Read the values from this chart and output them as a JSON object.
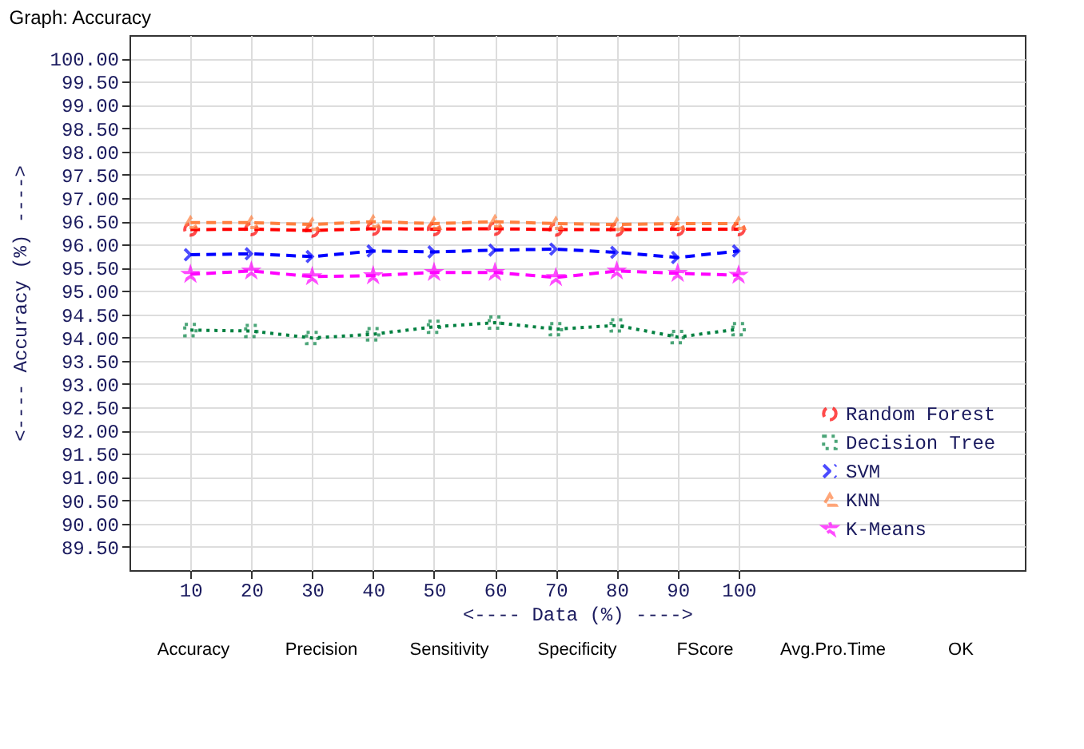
{
  "chart_data": {
    "type": "line",
    "title": "Graph: Accuracy",
    "xlabel": "<---- Data (%) ---->",
    "ylabel": "<---- Accuracy (%) ---->",
    "x": [
      10,
      20,
      30,
      40,
      50,
      60,
      70,
      80,
      90,
      100
    ],
    "series": [
      {
        "name": "Random Forest",
        "color": "#ff0000",
        "marker": "circle",
        "line_style": "dashed",
        "values": [
          96.32,
          96.33,
          96.3,
          96.34,
          96.33,
          96.34,
          96.32,
          96.32,
          96.33,
          96.33
        ]
      },
      {
        "name": "Decision Tree",
        "color": "#008040",
        "marker": "square",
        "line_style": "dotted",
        "values": [
          94.16,
          94.14,
          93.99,
          94.07,
          94.23,
          94.32,
          94.18,
          94.26,
          94.01,
          94.18
        ]
      },
      {
        "name": "SVM",
        "color": "#0000ff",
        "marker": "cross",
        "line_style": "dashed",
        "values": [
          95.78,
          95.8,
          95.74,
          95.86,
          95.84,
          95.88,
          95.9,
          95.83,
          95.72,
          95.86
        ]
      },
      {
        "name": "KNN",
        "color": "#ff8040",
        "marker": "triangle",
        "line_style": "dashed",
        "values": [
          96.47,
          96.47,
          96.43,
          96.49,
          96.45,
          96.49,
          96.45,
          96.43,
          96.45,
          96.45
        ]
      },
      {
        "name": "K-Means",
        "color": "#ff00ff",
        "marker": "star",
        "line_style": "dashed",
        "values": [
          95.36,
          95.43,
          95.31,
          95.33,
          95.4,
          95.4,
          95.29,
          95.43,
          95.38,
          95.34
        ]
      }
    ],
    "xlim": [
      0,
      147
    ],
    "xticks": [
      10,
      20,
      30,
      40,
      50,
      60,
      70,
      80,
      90,
      100
    ],
    "ylim": [
      89,
      100.5
    ],
    "yticks": [
      {
        "value": 89.5,
        "label": "89.50"
      },
      {
        "value": 90,
        "label": "90.00"
      },
      {
        "value": 90.5,
        "label": "90.50"
      },
      {
        "value": 91,
        "label": "91.00"
      },
      {
        "value": 91.5,
        "label": "91.50"
      },
      {
        "value": 92,
        "label": "92.00"
      },
      {
        "value": 92.5,
        "label": "92.50"
      },
      {
        "value": 93,
        "label": "93.00"
      },
      {
        "value": 93.5,
        "label": "93.50"
      },
      {
        "value": 94,
        "label": "94.00"
      },
      {
        "value": 94.5,
        "label": "94.50"
      },
      {
        "value": 95,
        "label": "95.00"
      },
      {
        "value": 95.5,
        "label": "95.50"
      },
      {
        "value": 96,
        "label": "96.00"
      },
      {
        "value": 96.5,
        "label": "96.50"
      },
      {
        "value": 97,
        "label": "97.00"
      },
      {
        "value": 97.5,
        "label": "97.50"
      },
      {
        "value": 98,
        "label": "98.00"
      },
      {
        "value": 98.5,
        "label": "98.50"
      },
      {
        "value": 99,
        "label": "99.00"
      },
      {
        "value": 99.5,
        "label": "99.50"
      },
      {
        "value": 100,
        "label": "100.00"
      }
    ],
    "grid": true,
    "legend": "bottom right",
    "annotations": [
      "Accuracy",
      "Precision",
      "Sensitivity",
      "Specificity",
      "FScore",
      "Avg.Pro.Time",
      "OK"
    ]
  }
}
